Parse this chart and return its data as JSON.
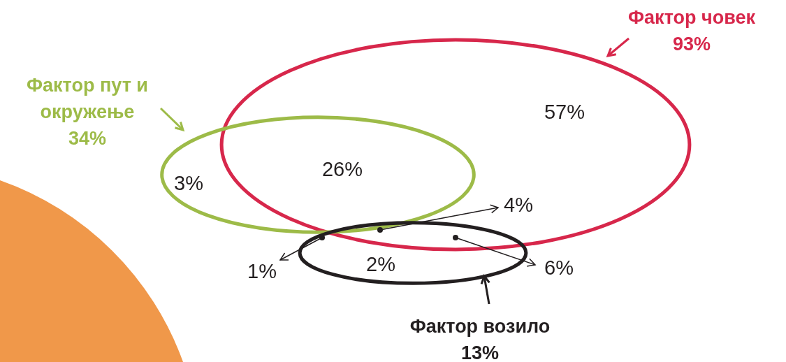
{
  "chart_data": {
    "type": "other",
    "categories": [
      "Фактор човек",
      "Фактор пут и окружење",
      "Фактор возило"
    ],
    "values": [
      93,
      34,
      13
    ],
    "value_labels": [
      "93%",
      "34%",
      "13%"
    ],
    "colors": [
      "#d7274b",
      "#9dbb48",
      "#231f20"
    ],
    "annotations": [
      "57%",
      "26%",
      "3%",
      "4%",
      "2%",
      "1%",
      "6%"
    ]
  }
}
